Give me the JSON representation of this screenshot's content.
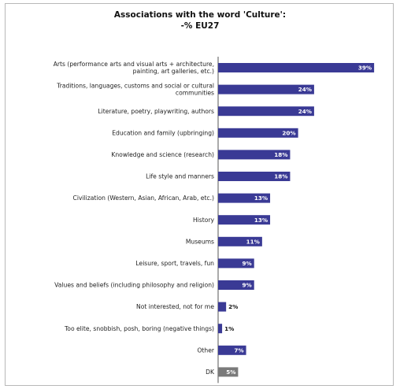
{
  "chart_data": {
    "type": "bar",
    "orientation": "horizontal",
    "title": "Associations with the word 'Culture':",
    "subtitle": "-% EU27",
    "categories": [
      [
        "Arts (performance arts and visual arts + architecture,",
        "painting, art galleries, etc.)"
      ],
      [
        "Traditions, languages, customs and social or cultural",
        "communities"
      ],
      [
        "Literature, poetry, playwriting, authors"
      ],
      [
        "Education and family (upbringing)"
      ],
      [
        "Knowledge and science (research)"
      ],
      [
        "Life style and manners"
      ],
      [
        "Civilization (Western, Asian, African, Arab, etc.)"
      ],
      [
        "History"
      ],
      [
        "Museums"
      ],
      [
        "Leisure, sport, travels, fun"
      ],
      [
        "Values and beliefs (including philosophy and religion)"
      ],
      [
        "Not interested, not for me"
      ],
      [
        "Too elite, snobbish, posh, boring (negative things)"
      ],
      [
        "Other"
      ],
      [
        "DK"
      ]
    ],
    "values": [
      39,
      24,
      24,
      20,
      18,
      18,
      13,
      13,
      11,
      9,
      9,
      2,
      1,
      7,
      5
    ],
    "value_labels": [
      "39%",
      "24%",
      "24%",
      "20%",
      "18%",
      "18%",
      "13%",
      "13%",
      "11%",
      "9%",
      "9%",
      "2%",
      "1%",
      "7%",
      "5%"
    ],
    "bar_colors": [
      "#3a3a95",
      "#3a3a95",
      "#3a3a95",
      "#3a3a95",
      "#3a3a95",
      "#3a3a95",
      "#3a3a95",
      "#3a3a95",
      "#3a3a95",
      "#3a3a95",
      "#3a3a95",
      "#3a3a95",
      "#3a3a95",
      "#3a3a95",
      "#7a7a7a"
    ],
    "xlim": [
      0,
      40
    ],
    "grid": false,
    "legend": "none"
  }
}
